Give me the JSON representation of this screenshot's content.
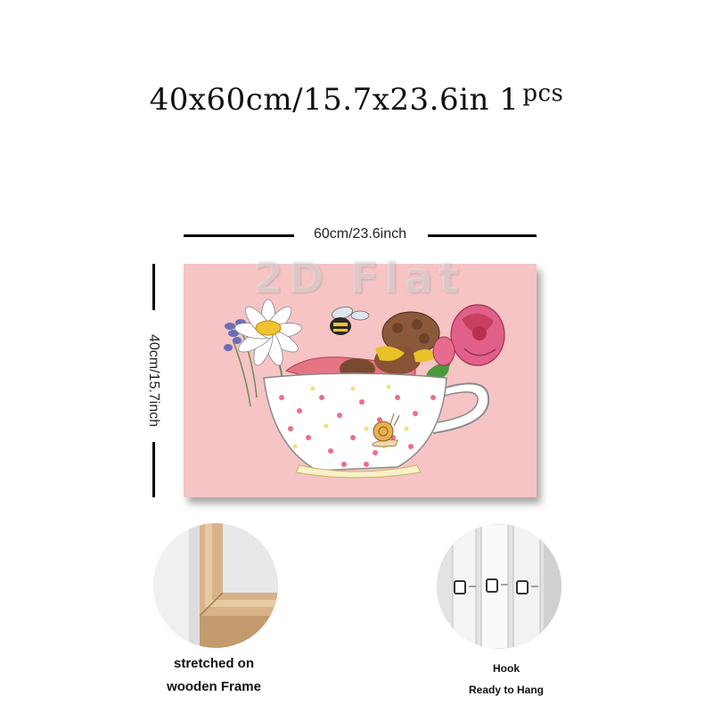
{
  "title": {
    "main": "40x60cm/15.7x23.6in 1",
    "suffix": "pcs"
  },
  "dimensions": {
    "width_label": "60cm/23.6inch",
    "height_label": "40cm/15.7inch"
  },
  "watermark": "2D Flat",
  "artwork": {
    "background": "#f6c4c4",
    "subject": "teacup-fairy"
  },
  "features": [
    {
      "icon": "wooden-frame-corner",
      "caption_line1": "stretched on",
      "caption_line2": "wooden Frame"
    },
    {
      "icon": "hanging-hooks",
      "caption_line1": "Hook",
      "caption_line2": "Ready to Hang"
    }
  ]
}
